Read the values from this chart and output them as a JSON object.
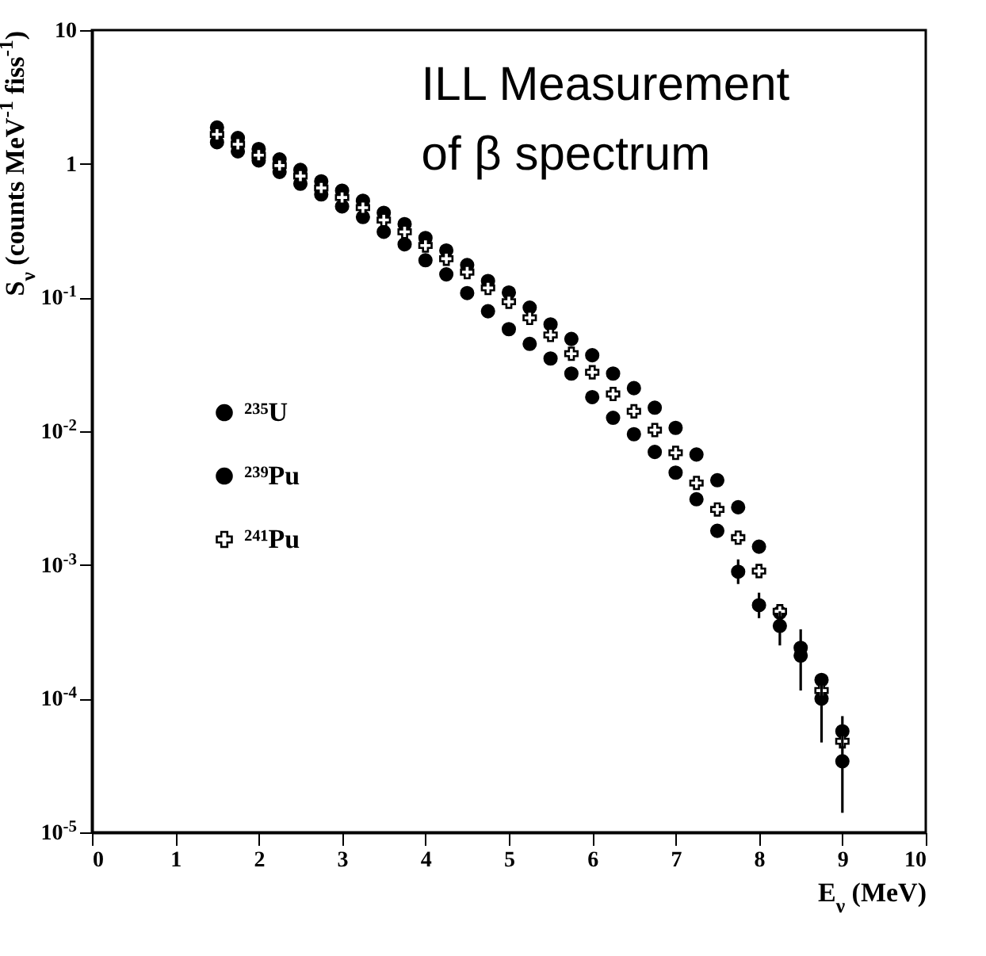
{
  "chart_data": {
    "type": "scatter",
    "annotations": [
      "ILL Measurement of β spectrum"
    ],
    "xlabel": "E$_{ν}$ (MeV)",
    "ylabel": "S$_{ν}$ (counts MeV$^{-1}$ fiss$^{-1}$)",
    "x": [
      1.5,
      1.75,
      2,
      2.25,
      2.5,
      2.75,
      3,
      3.25,
      3.5,
      3.75,
      4,
      4.25,
      4.5,
      4.75,
      5,
      5.25,
      5.5,
      5.75,
      6,
      6.25,
      6.5,
      6.75,
      7,
      7.25,
      7.5,
      7.75,
      8,
      8.25,
      8.5,
      8.75,
      9
    ],
    "series": [
      {
        "name": "²³⁵U",
        "color": "#000000",
        "marker": "circle",
        "values": [
          1.87,
          1.56,
          1.29,
          1.08,
          0.9,
          0.74,
          0.63,
          0.53,
          0.43,
          0.354,
          0.279,
          0.225,
          0.175,
          0.133,
          0.109,
          0.084,
          0.063,
          0.049,
          0.037,
          0.027,
          0.021,
          0.015,
          0.0106,
          0.0067,
          0.0043,
          0.0027,
          0.00137,
          0.00044,
          0.00024,
          0.000138,
          5.7e-05
        ]
      },
      {
        "name": "²³⁹Pu",
        "color": "#000000",
        "marker": "circle",
        "values": [
          1.45,
          1.24,
          1.06,
          0.87,
          0.71,
          0.59,
          0.48,
          0.4,
          0.31,
          0.25,
          0.19,
          0.149,
          0.108,
          0.079,
          0.058,
          0.045,
          0.035,
          0.027,
          0.018,
          0.0126,
          0.0095,
          0.007,
          0.0049,
          0.0031,
          0.0018,
          0.00089,
          0.0005,
          0.00035,
          0.00021,
          0.0001,
          3.4e-05
        ],
        "errors": [
          null,
          null,
          null,
          null,
          null,
          null,
          null,
          null,
          null,
          null,
          null,
          null,
          null,
          null,
          null,
          null,
          null,
          null,
          null,
          null,
          null,
          null,
          null,
          null,
          null,
          [
            0.00072,
            0.0011
          ],
          [
            0.0004,
            0.00062
          ],
          [
            0.00025,
            0.00045
          ],
          [
            0.000115,
            0.00033
          ],
          [
            4.7e-05,
            0.00015
          ],
          [
            1.4e-05,
            7.4e-05
          ]
        ]
      },
      {
        "name": "²⁴¹Pu",
        "color": "#000000",
        "marker": "cross",
        "values": [
          1.66,
          1.4,
          1.16,
          0.97,
          0.81,
          0.66,
          0.56,
          0.47,
          0.38,
          0.31,
          0.245,
          0.195,
          0.155,
          0.118,
          0.093,
          0.0705,
          0.0525,
          0.038,
          0.0276,
          0.019,
          0.0141,
          0.0102,
          0.0069,
          0.0041,
          0.0026,
          0.0016,
          0.0009,
          0.00045,
          null,
          0.000115,
          4.8e-05
        ]
      }
    ],
    "xlim": [
      0,
      10
    ],
    "xticks": [
      0,
      1,
      2,
      3,
      4,
      5,
      6,
      7,
      8,
      9,
      10
    ],
    "log": true,
    "ylim": [
      1e-05,
      10
    ],
    "yticks": [
      {
        "value": 1e-05,
        "label": "10$^{-5}$"
      },
      {
        "value": 0.0001,
        "label": "10$^{-4}$"
      },
      {
        "value": 0.001,
        "label": "10$^{-3}$"
      },
      {
        "value": 0.01,
        "label": "10$^{-2}$"
      },
      {
        "value": 0.1,
        "label": "10$^{-1}$"
      },
      1,
      10
    ],
    "grid": false,
    "legend": "left"
  }
}
